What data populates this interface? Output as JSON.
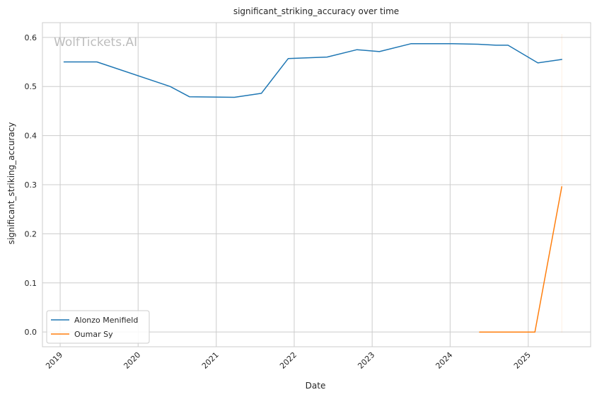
{
  "watermark": "WolfTickets.AI",
  "chart_data": {
    "type": "line",
    "title": "significant_striking_accuracy over time",
    "xlabel": "Date",
    "ylabel": "significant_striking_accuracy",
    "x_ticks": [
      "2019",
      "2020",
      "2021",
      "2022",
      "2023",
      "2024",
      "2025"
    ],
    "y_ticks": [
      "0.0",
      "0.1",
      "0.2",
      "0.3",
      "0.4",
      "0.5",
      "0.6"
    ],
    "xlim": [
      "2018-10-10",
      "2025-10-20"
    ],
    "ylim": [
      -0.03,
      0.63
    ],
    "grid": true,
    "legend_position": "lower-left",
    "series": [
      {
        "name": "Alonzo Menifield",
        "color": "#1f77b4",
        "points": [
          {
            "x": "2019-01-19",
            "y": 0.55
          },
          {
            "x": "2019-06-22",
            "y": 0.55
          },
          {
            "x": "2020-05-30",
            "y": 0.5
          },
          {
            "x": "2020-08-29",
            "y": 0.479
          },
          {
            "x": "2021-03-27",
            "y": 0.478
          },
          {
            "x": "2021-07-31",
            "y": 0.486
          },
          {
            "x": "2021-12-04",
            "y": 0.557
          },
          {
            "x": "2022-06-04",
            "y": 0.56
          },
          {
            "x": "2022-10-22",
            "y": 0.575
          },
          {
            "x": "2023-02-04",
            "y": 0.571
          },
          {
            "x": "2023-07-01",
            "y": 0.587
          },
          {
            "x": "2024-01-13",
            "y": 0.587
          },
          {
            "x": "2024-05-11",
            "y": 0.586
          },
          {
            "x": "2024-08-03",
            "y": 0.584
          },
          {
            "x": "2024-09-28",
            "y": 0.584
          },
          {
            "x": "2025-02-15",
            "y": 0.548
          },
          {
            "x": "2025-06-07",
            "y": 0.555
          }
        ]
      },
      {
        "name": "Oumar Sy",
        "color": "#ff7f0e",
        "points": [
          {
            "x": "2024-05-18",
            "y": 0.0
          },
          {
            "x": "2024-10-26",
            "y": 0.0
          },
          {
            "x": "2025-02-01",
            "y": 0.0
          },
          {
            "x": "2025-06-07",
            "y": 0.296
          }
        ]
      }
    ]
  }
}
